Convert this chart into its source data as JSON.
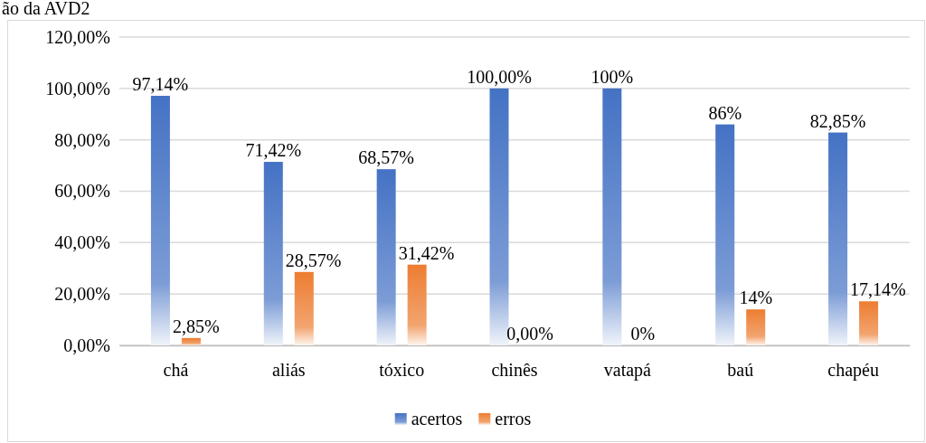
{
  "chart_data": {
    "type": "bar",
    "title": "ão da AVD2",
    "categories": [
      "chá",
      "aliás",
      "tóxico",
      "chinês",
      "vatapá",
      "baú",
      "chapéu"
    ],
    "series": [
      {
        "name": "acertos",
        "color": "#4472c4",
        "values": [
          97.14,
          71.42,
          68.57,
          100,
          100,
          86,
          82.85
        ],
        "value_labels": [
          "97,14%",
          "71,42%",
          "68,57%",
          "100,00%",
          "100%",
          "86%",
          "82,85%"
        ]
      },
      {
        "name": "erros",
        "color": "#ed7d31",
        "values": [
          2.85,
          28.57,
          31.42,
          0,
          0,
          14,
          17.14
        ],
        "value_labels": [
          "2,85%",
          "28,57%",
          "31,42%",
          "0,00%",
          "0%",
          "14%",
          "17,14%"
        ]
      }
    ],
    "ylim": [
      0,
      120
    ],
    "yticks": [
      {
        "value": 0,
        "label": "0,00%"
      },
      {
        "value": 20,
        "label": "20,00%"
      },
      {
        "value": 40,
        "label": "40,00%"
      },
      {
        "value": 60,
        "label": "60,00%"
      },
      {
        "value": 80,
        "label": "80,00%"
      },
      {
        "value": 100,
        "label": "100,00%"
      },
      {
        "value": 120,
        "label": "120,00%"
      }
    ],
    "grid": "y",
    "legend": "bottom"
  }
}
